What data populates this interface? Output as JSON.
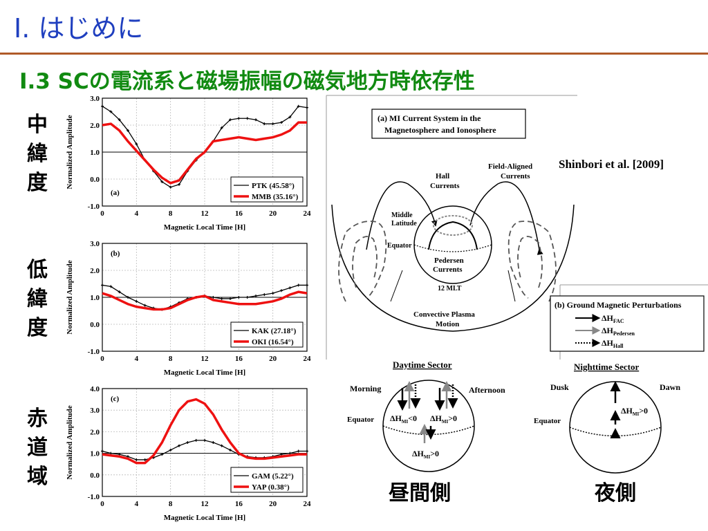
{
  "header": {
    "title": "I. はじめに",
    "subtitle": "I.3 SCの電流系と磁場振幅の磁気地方時依存性"
  },
  "side_labels": [
    [
      "中",
      "緯",
      "度"
    ],
    [
      "低",
      "緯",
      "度"
    ],
    [
      "赤",
      "道",
      "域"
    ]
  ],
  "colors": {
    "accent": "#ee1111",
    "title": "#1f3fbf",
    "subtitle": "#118a11",
    "rule": "#b05a28"
  },
  "chart_data": [
    {
      "type": "line",
      "panel": "(a)",
      "xlabel": "Magnetic Local Time [H]",
      "ylabel": "Normalized Amplitude",
      "xlim": [
        0,
        24
      ],
      "ylim": [
        -1.0,
        3.0
      ],
      "xticks": [
        "0",
        "4",
        "8",
        "12",
        "16",
        "20",
        "24"
      ],
      "yticks": [
        "-1.0",
        "0.0",
        "1.0",
        "2.0",
        "3.0"
      ],
      "grid": true,
      "legend": "bottom-right",
      "x": [
        0,
        1,
        2,
        3,
        4,
        5,
        6,
        7,
        8,
        9,
        10,
        11,
        12,
        13,
        14,
        15,
        16,
        17,
        18,
        19,
        20,
        21,
        22,
        23,
        24
      ],
      "series": [
        {
          "name": "PTK (45.58°)",
          "color": "#000000",
          "markers": true,
          "values": [
            2.7,
            2.5,
            2.2,
            1.8,
            1.3,
            0.7,
            0.3,
            -0.1,
            -0.3,
            -0.2,
            0.3,
            0.7,
            1.0,
            1.4,
            1.9,
            2.2,
            2.25,
            2.25,
            2.2,
            2.05,
            2.05,
            2.1,
            2.3,
            2.7,
            2.65
          ]
        },
        {
          "name": "MMB (35.16°)",
          "color": "#ee1111",
          "markers": false,
          "values": [
            2.0,
            2.05,
            1.8,
            1.4,
            1.05,
            0.7,
            0.35,
            0.05,
            -0.15,
            -0.05,
            0.35,
            0.75,
            1.0,
            1.4,
            1.45,
            1.5,
            1.55,
            1.5,
            1.45,
            1.5,
            1.55,
            1.65,
            1.8,
            2.1,
            2.1
          ]
        }
      ]
    },
    {
      "type": "line",
      "panel": "(b)",
      "xlabel": "Magnetic Local Time [H]",
      "ylabel": "Normalized Amplitude",
      "xlim": [
        0,
        24
      ],
      "ylim": [
        -1.0,
        3.0
      ],
      "xticks": [
        "0",
        "4",
        "8",
        "12",
        "16",
        "20",
        "24"
      ],
      "yticks": [
        "-1.0",
        "0.0",
        "1.0",
        "2.0",
        "3.0"
      ],
      "grid": true,
      "legend": "bottom-right",
      "x": [
        0,
        1,
        2,
        3,
        4,
        5,
        6,
        7,
        8,
        9,
        10,
        11,
        12,
        13,
        14,
        15,
        16,
        17,
        18,
        19,
        20,
        21,
        22,
        23,
        24
      ],
      "series": [
        {
          "name": "KAK (27.18°)",
          "color": "#000000",
          "markers": true,
          "values": [
            1.45,
            1.4,
            1.2,
            1.0,
            0.85,
            0.7,
            0.6,
            0.55,
            0.65,
            0.8,
            0.95,
            1.0,
            1.05,
            1.0,
            0.95,
            0.95,
            1.0,
            1.0,
            1.05,
            1.1,
            1.15,
            1.25,
            1.35,
            1.45,
            1.45
          ]
        },
        {
          "name": "OKI (16.54°)",
          "color": "#ee1111",
          "markers": false,
          "values": [
            1.15,
            1.05,
            0.9,
            0.75,
            0.65,
            0.6,
            0.55,
            0.55,
            0.6,
            0.75,
            0.9,
            1.0,
            1.05,
            0.9,
            0.85,
            0.8,
            0.75,
            0.75,
            0.75,
            0.8,
            0.85,
            0.95,
            1.1,
            1.2,
            1.15
          ]
        }
      ]
    },
    {
      "type": "line",
      "panel": "(c)",
      "xlabel": "Magnetic Local Time [H]",
      "ylabel": "Normalized Amplitude",
      "xlim": [
        0,
        24
      ],
      "ylim": [
        -1.0,
        4.0
      ],
      "xticks": [
        "0",
        "4",
        "8",
        "12",
        "16",
        "20",
        "24"
      ],
      "yticks": [
        "-1.0",
        "0.0",
        "1.0",
        "2.0",
        "3.0",
        "4.0"
      ],
      "grid": true,
      "legend": "bottom-right",
      "x": [
        0,
        1,
        2,
        3,
        4,
        5,
        6,
        7,
        8,
        9,
        10,
        11,
        12,
        13,
        14,
        15,
        16,
        17,
        18,
        19,
        20,
        21,
        22,
        23,
        24
      ],
      "series": [
        {
          "name": "GAM (5.22°)",
          "color": "#000000",
          "markers": true,
          "values": [
            1.1,
            1.0,
            0.95,
            0.85,
            0.7,
            0.7,
            0.8,
            0.95,
            1.15,
            1.35,
            1.5,
            1.6,
            1.6,
            1.5,
            1.35,
            1.15,
            0.95,
            0.85,
            0.8,
            0.8,
            0.85,
            0.95,
            1.0,
            1.1,
            1.1
          ]
        },
        {
          "name": "YAP (0.38°)",
          "color": "#ee1111",
          "markers": false,
          "values": [
            0.95,
            0.9,
            0.85,
            0.75,
            0.55,
            0.55,
            0.9,
            1.5,
            2.3,
            3.0,
            3.4,
            3.5,
            3.3,
            2.8,
            2.1,
            1.5,
            1.0,
            0.8,
            0.75,
            0.75,
            0.8,
            0.85,
            0.9,
            0.95,
            0.95
          ]
        }
      ]
    }
  ],
  "diagram": {
    "box_a": [
      "(a) MI Current System in the",
      "Magnetosphere and Ionosphere"
    ],
    "hall": [
      "Hall",
      "Currents"
    ],
    "fac": [
      "Field-Aligned",
      "Currents"
    ],
    "middle": [
      "Middle",
      "Latitude"
    ],
    "equator": "Equator",
    "pedersen": [
      "Pedersen",
      "Currents"
    ],
    "mlt": "12 MLT",
    "convective": [
      "Convective Plasma",
      "Motion"
    ],
    "citation": "Shinbori et al. [2009]",
    "box_b_title": "(b) Ground Magnetic Perturbations",
    "legend_fac": "ΔH",
    "legend_fac_sub": "FAC",
    "legend_ped": "ΔH",
    "legend_ped_sub": "Pedersen",
    "legend_hall": "ΔH",
    "legend_hall_sub": "Hall",
    "day_title": "Daytime Sector",
    "night_title": "Nighttime Sector",
    "morning": "Morning",
    "afternoon": "Afternoon",
    "dusk": "Dusk",
    "dawn": "Dawn",
    "eq_day": "Equator",
    "eq_night": "Equator",
    "dh1": "ΔH",
    "dh1_sub": "MI",
    "dh1_rel": "<0",
    "dh2": "ΔH",
    "dh2_sub": "MI",
    "dh2_rel": ">0",
    "dh3": "ΔH",
    "dh3_sub": "MI",
    "dh3_rel": ">0",
    "dh4": "ΔH",
    "dh4_sub": "MI",
    "dh4_rel": ">0",
    "day_jp": "昼間側",
    "night_jp": "夜側"
  }
}
